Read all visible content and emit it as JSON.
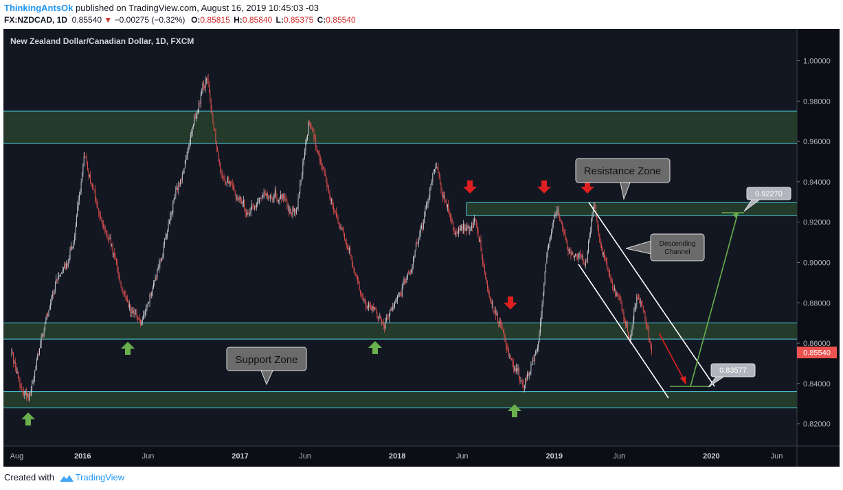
{
  "header": {
    "author": "ThinkingAntsOk",
    "published": "published on TradingView.com, August 16, 2019 10:45:03 -03",
    "symbol": "FX:NZDCAD, 1D",
    "last": "0.85540",
    "change": "−0.00275 (−0.32%)",
    "o_label": "O:",
    "o_value": "0.85815",
    "h_label": "H:",
    "h_value": "0.85840",
    "l_label": "L:",
    "l_value": "0.85375",
    "c_label": "C:",
    "c_value": "0.85540"
  },
  "footer": {
    "created_with": "Created with",
    "brand": "TradingView"
  },
  "colors": {
    "background": "#131722",
    "axis_bg": "#0c0e15",
    "zone_fill": "#243a2a",
    "zone_line": "#4dd0e1",
    "up_candle": "#d1d4dc",
    "down_candle": "#ef5350",
    "green_arrow": "#6ab04c",
    "red_arrow": "#e02020",
    "price_badge": "#ef5350",
    "callout_bg": "#6b6b6b"
  },
  "chart_data": {
    "type": "candlestick",
    "title": "New Zealand Dollar/Canadian Dollar, 1D, FXCM",
    "ylim": [
      0.809,
      1.0158
    ],
    "y_ticks": [
      "1.00000",
      "0.98000",
      "0.96000",
      "0.94000",
      "0.92000",
      "0.90000",
      "0.88000",
      "0.86000",
      "0.84000",
      "0.82000"
    ],
    "x_ticks": [
      "Aug",
      "2016",
      "Jun",
      "2017",
      "Jun",
      "2018",
      "Jun",
      "2019",
      "Jun",
      "2020",
      "Jun"
    ],
    "last_price": "0.85540",
    "series": [
      {
        "name": "NZDCAD",
        "approx_close_path": [
          [
            "2015-07-20",
            0.855
          ],
          [
            "2015-08-15",
            0.835
          ],
          [
            "2015-09-01",
            0.836
          ],
          [
            "2015-10-20",
            0.88
          ],
          [
            "2015-12-10",
            0.91
          ],
          [
            "2016-01-05",
            0.95
          ],
          [
            "2016-02-15",
            0.92
          ],
          [
            "2016-04-10",
            0.88
          ],
          [
            "2016-05-15",
            0.867
          ],
          [
            "2016-06-15",
            0.89
          ],
          [
            "2016-08-01",
            0.93
          ],
          [
            "2016-09-15",
            0.97
          ],
          [
            "2016-10-15",
            0.99
          ],
          [
            "2016-11-15",
            0.95
          ],
          [
            "2017-01-15",
            0.925
          ],
          [
            "2017-03-15",
            0.935
          ],
          [
            "2017-05-10",
            0.925
          ],
          [
            "2017-06-10",
            0.97
          ],
          [
            "2017-07-01",
            0.955
          ],
          [
            "2017-09-01",
            0.91
          ],
          [
            "2017-10-15",
            0.88
          ],
          [
            "2017-12-01",
            0.87
          ],
          [
            "2018-02-01",
            0.895
          ],
          [
            "2018-04-01",
            0.95
          ],
          [
            "2018-05-15",
            0.915
          ],
          [
            "2018-07-01",
            0.917
          ],
          [
            "2018-08-15",
            0.875
          ],
          [
            "2018-10-01",
            0.85
          ],
          [
            "2018-10-20",
            0.835
          ],
          [
            "2018-11-25",
            0.86
          ],
          [
            "2018-12-15",
            0.905
          ],
          [
            "2019-01-10",
            0.925
          ],
          [
            "2019-02-01",
            0.905
          ],
          [
            "2019-03-15",
            0.9
          ],
          [
            "2019-04-05",
            0.928
          ],
          [
            "2019-04-20",
            0.905
          ],
          [
            "2019-05-20",
            0.89
          ],
          [
            "2019-06-25",
            0.865
          ],
          [
            "2019-07-15",
            0.888
          ],
          [
            "2019-08-16",
            0.8554
          ]
        ]
      }
    ],
    "zones": [
      {
        "low": 0.959,
        "high": 0.975
      },
      {
        "name": "Resistance Zone",
        "low": 0.9232,
        "high": 0.9297
      },
      {
        "low": 0.862,
        "high": 0.87
      },
      {
        "name": "Support Zone",
        "low": 0.828,
        "high": 0.836
      }
    ],
    "annotations": {
      "resistance": "Resistance Zone",
      "support": "Support Zone",
      "channel": "Descending Channel",
      "target_high": "0.92270",
      "target_low": "0.83577"
    }
  }
}
